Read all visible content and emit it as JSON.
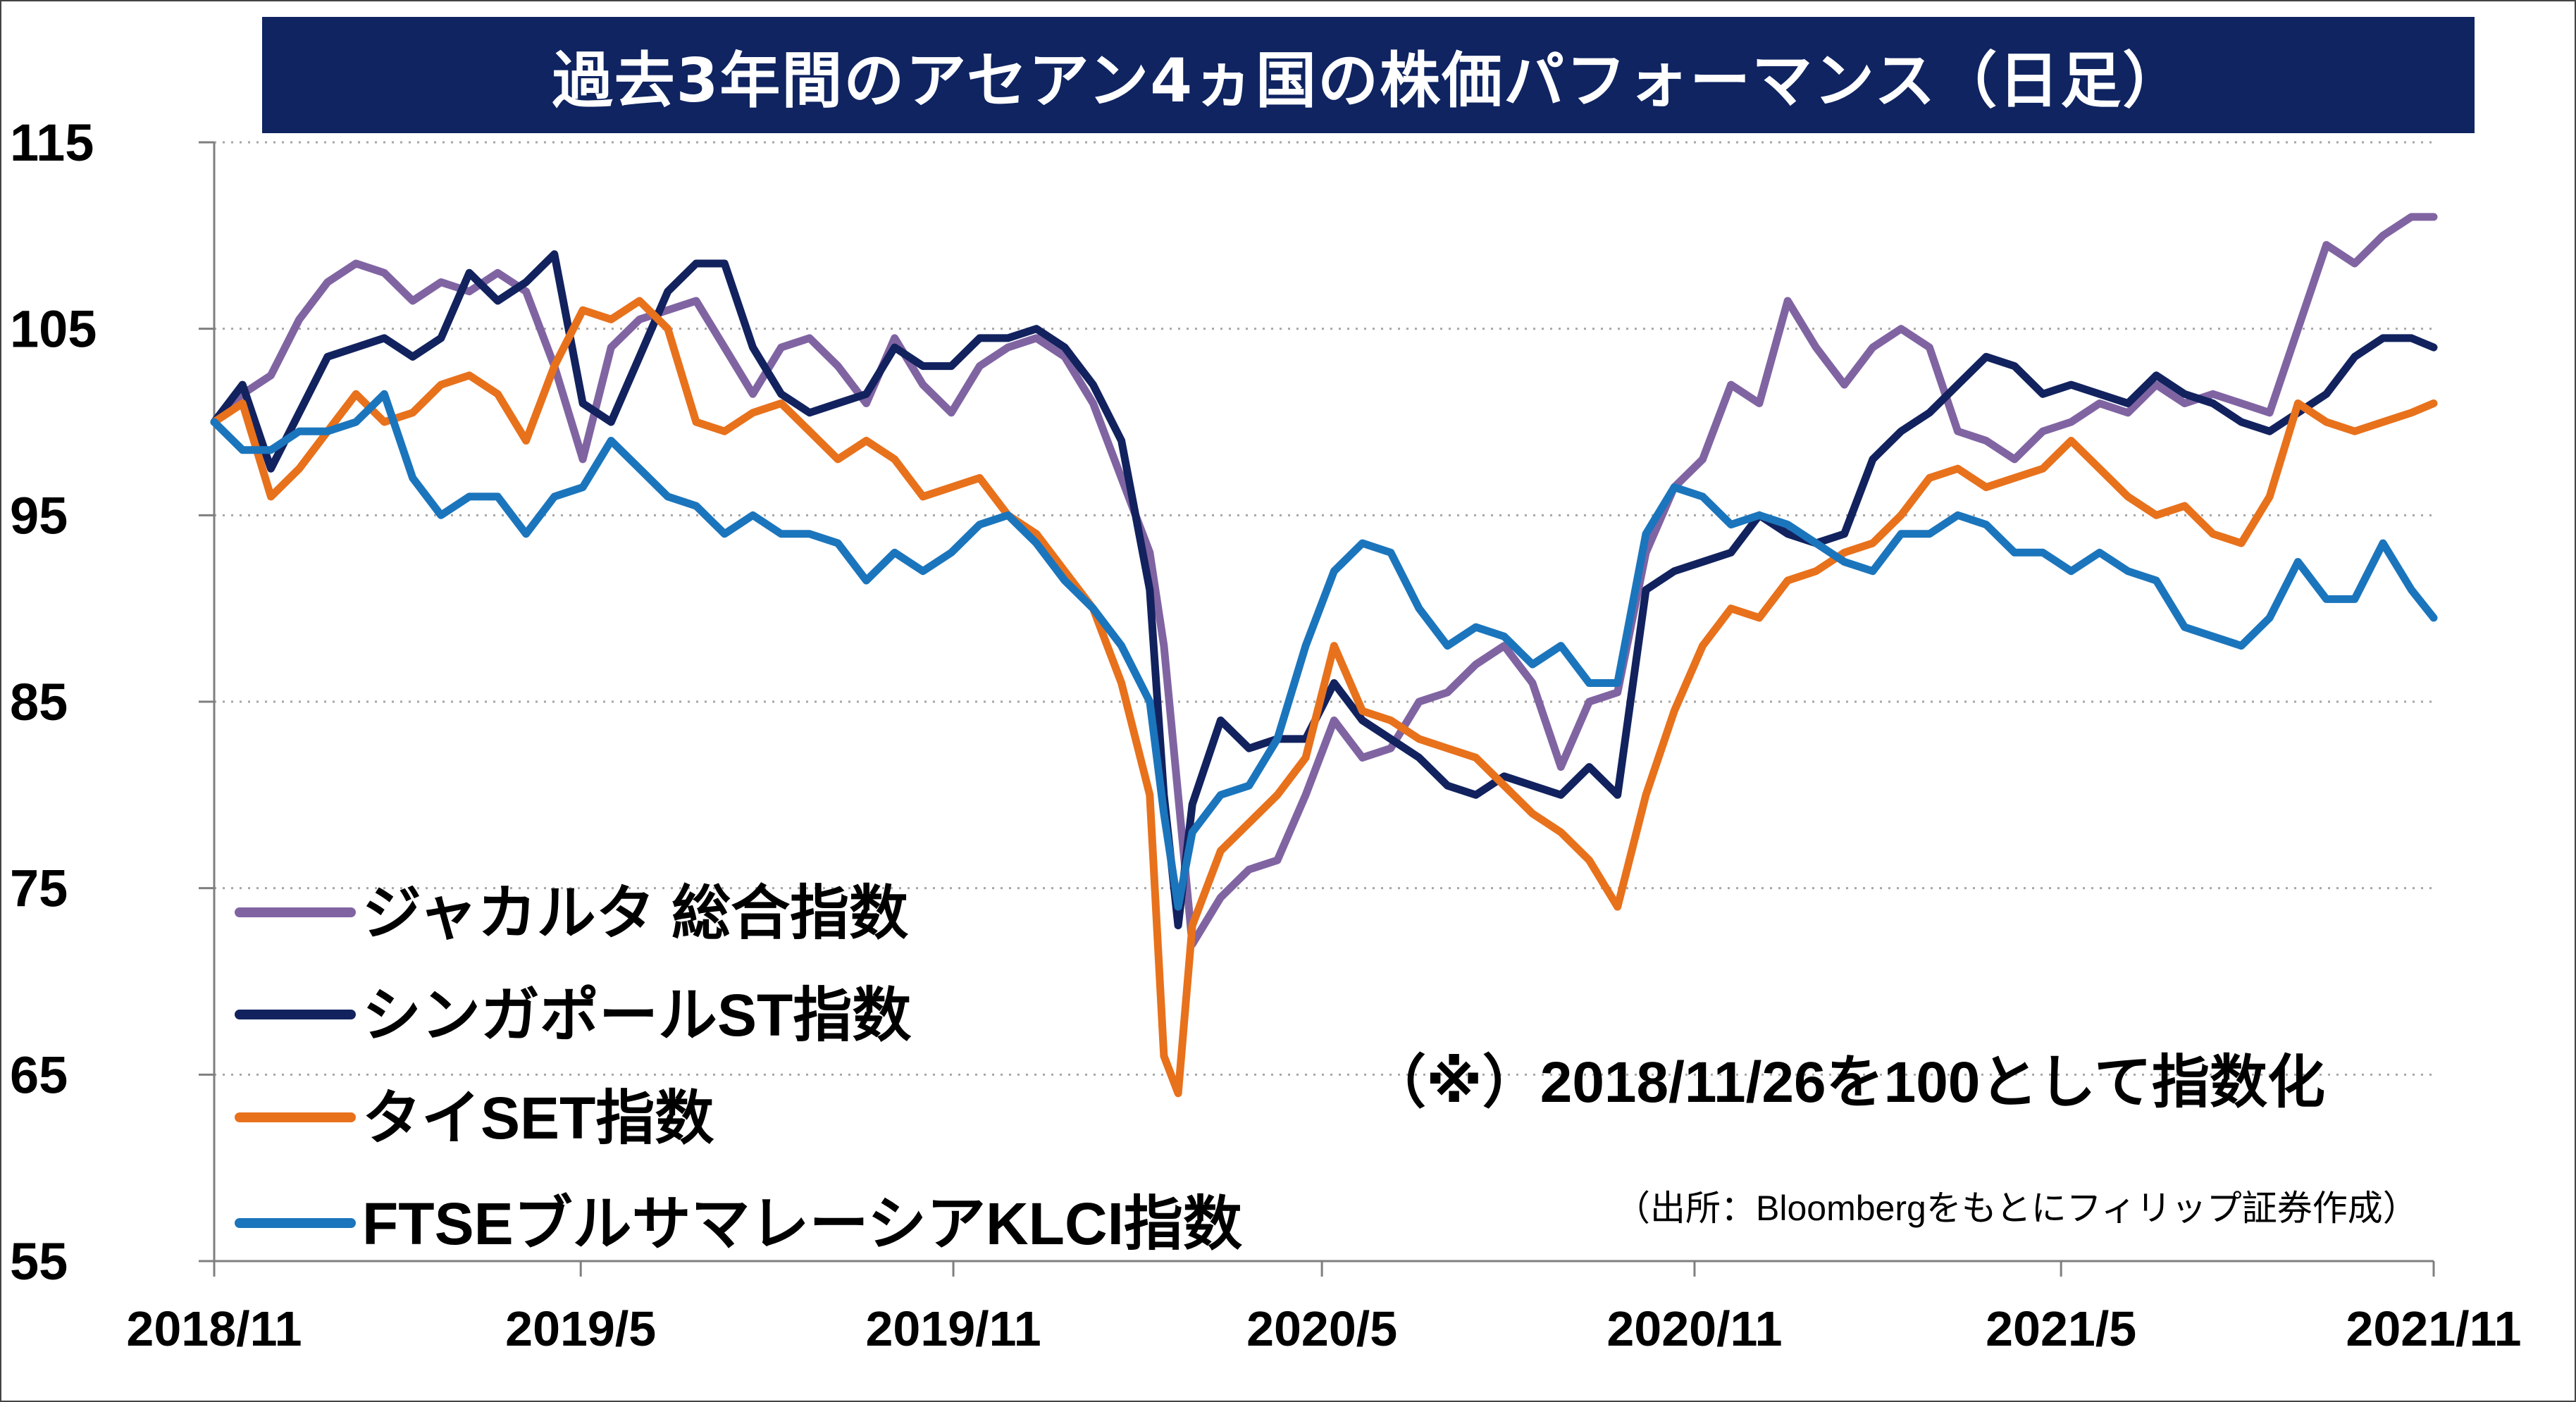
{
  "title": "過去3年間のアセアン4ヵ国の株価パフォーマンス（日足）",
  "note": "（※）2018/11/26を100として指数化",
  "source": "（出所：Bloombergをもとにフィリップ証券作成）",
  "chart_data": {
    "type": "line",
    "title": "過去3年間のアセアン4ヵ国の株価パフォーマンス（日足）",
    "xlabel": "",
    "ylabel": "",
    "ylim": [
      55,
      115
    ],
    "yticks": [
      "115",
      "105",
      "95",
      "85",
      "75",
      "65",
      "55"
    ],
    "xlim": [
      "2018/11",
      "2021/11"
    ],
    "xticks": [
      "2018/11",
      "2019/5",
      "2019/11",
      "2020/5",
      "2020/11",
      "2021/5",
      "2021/11"
    ],
    "grid": "horizontal dotted",
    "legend_position": "bottom-left",
    "x": [
      "2018/11/26",
      "2018/12/10",
      "2018/12/24",
      "2019/1/07",
      "2019/1/21",
      "2019/2/04",
      "2019/2/18",
      "2019/3/04",
      "2019/3/18",
      "2019/4/01",
      "2019/4/15",
      "2019/4/29",
      "2019/5/13",
      "2019/5/27",
      "2019/6/10",
      "2019/6/24",
      "2019/7/08",
      "2019/7/22",
      "2019/8/05",
      "2019/8/19",
      "2019/9/02",
      "2019/9/16",
      "2019/9/30",
      "2019/10/14",
      "2019/10/28",
      "2019/11/11",
      "2019/11/25",
      "2019/12/09",
      "2019/12/23",
      "2020/1/06",
      "2020/1/20",
      "2020/2/03",
      "2020/2/17",
      "2020/3/02",
      "2020/3/09",
      "2020/3/16",
      "2020/3/23",
      "2020/4/06",
      "2020/4/20",
      "2020/5/04",
      "2020/5/18",
      "2020/6/01",
      "2020/6/15",
      "2020/6/29",
      "2020/7/13",
      "2020/7/27",
      "2020/8/10",
      "2020/8/24",
      "2020/9/07",
      "2020/9/21",
      "2020/10/05",
      "2020/10/19",
      "2020/11/02",
      "2020/11/16",
      "2020/11/30",
      "2020/12/14",
      "2020/12/28",
      "2021/1/11",
      "2021/1/25",
      "2021/2/08",
      "2021/2/22",
      "2021/3/08",
      "2021/3/22",
      "2021/4/05",
      "2021/4/19",
      "2021/5/03",
      "2021/5/17",
      "2021/5/31",
      "2021/6/14",
      "2021/6/28",
      "2021/7/12",
      "2021/7/26",
      "2021/8/09",
      "2021/8/23",
      "2021/9/06",
      "2021/9/20",
      "2021/10/04",
      "2021/10/18",
      "2021/11/01",
      "2021/11/15",
      "2021/11/26"
    ],
    "series": [
      {
        "name": "ジャカルタ 総合指数",
        "color": "#8064a2",
        "values": [
          100,
          101.5,
          102.5,
          105.5,
          107.5,
          108.5,
          108,
          106.5,
          107.5,
          107,
          108,
          107,
          103,
          98,
          104,
          105.5,
          106,
          106.5,
          104,
          101.5,
          104,
          104.5,
          103,
          101,
          104.5,
          102,
          100.5,
          103,
          104,
          104.5,
          103.5,
          101,
          97,
          93,
          88,
          80,
          72,
          74.5,
          76,
          76.5,
          80,
          84,
          82,
          82.5,
          85,
          85.5,
          87,
          88,
          86,
          81.5,
          85,
          85.5,
          93,
          96.5,
          98,
          102,
          101,
          106.5,
          104,
          102,
          104,
          105,
          104,
          99.5,
          99,
          98,
          99.5,
          100,
          101,
          100.5,
          102,
          101,
          101.5,
          101,
          100.5,
          105,
          109.5,
          108.5,
          110,
          111,
          111
        ]
      },
      {
        "name": "シンガポールST指数",
        "color": "#12225e",
        "values": [
          100,
          102,
          97.5,
          100.5,
          103.5,
          104,
          104.5,
          103.5,
          104.5,
          108,
          106.5,
          107.5,
          109,
          101,
          100,
          103.5,
          107,
          108.5,
          108.5,
          104,
          101.5,
          100.5,
          101,
          101.5,
          104,
          103,
          103,
          104.5,
          104.5,
          105,
          104,
          102,
          99,
          91,
          80,
          73,
          79.5,
          84,
          82.5,
          83,
          83,
          86,
          84,
          83,
          82,
          80.5,
          80,
          81,
          80.5,
          80,
          81.5,
          80,
          91,
          92,
          92.5,
          93,
          95,
          94,
          93.5,
          94,
          98,
          99.5,
          100.5,
          102,
          103.5,
          103,
          101.5,
          102,
          101.5,
          101,
          102.5,
          101.5,
          101,
          100,
          99.5,
          100.5,
          101.5,
          103.5,
          104.5,
          104.5,
          104
        ]
      },
      {
        "name": "タイSET指数",
        "color": "#e8711c",
        "values": [
          100,
          101,
          96,
          97.5,
          99.5,
          101.5,
          100,
          100.5,
          102,
          102.5,
          101.5,
          99,
          103,
          106,
          105.5,
          106.5,
          105,
          100,
          99.5,
          100.5,
          101,
          99.5,
          98,
          99,
          98,
          96,
          96.5,
          97,
          95,
          94,
          92,
          90,
          86,
          80,
          66,
          64,
          73,
          77,
          78.5,
          80,
          82,
          88,
          84.5,
          84,
          83,
          82.5,
          82,
          80.5,
          79,
          78,
          76.5,
          74,
          80,
          84.5,
          88,
          90,
          89.5,
          91.5,
          92,
          93,
          93.5,
          95,
          97,
          97.5,
          96.5,
          97,
          97.5,
          99,
          97.5,
          96,
          95,
          95.5,
          94,
          93.5,
          96,
          101,
          100,
          99.5,
          100,
          100.5,
          101
        ]
      },
      {
        "name": "FTSEブルサマレーシアKLCI指数",
        "color": "#1b75bc",
        "values": [
          100,
          98.5,
          98.5,
          99.5,
          99.5,
          100,
          101.5,
          97,
          95,
          96,
          96,
          94,
          96,
          96.5,
          99,
          97.5,
          96,
          95.5,
          94,
          95,
          94,
          94,
          93.5,
          91.5,
          93,
          92,
          93,
          94.5,
          95,
          93.5,
          91.5,
          90,
          88,
          85,
          79,
          74,
          78,
          80,
          80.5,
          83,
          88,
          92,
          93.5,
          93,
          90,
          88,
          89,
          88.5,
          87,
          88,
          86,
          86,
          94,
          96.5,
          96,
          94.5,
          95,
          94.5,
          93.5,
          92.5,
          92,
          94,
          94,
          95,
          94.5,
          93,
          93,
          92,
          93,
          92,
          91.5,
          89,
          88.5,
          88,
          89.5,
          92.5,
          90.5,
          90.5,
          93.5,
          91,
          89.5
        ]
      }
    ]
  }
}
